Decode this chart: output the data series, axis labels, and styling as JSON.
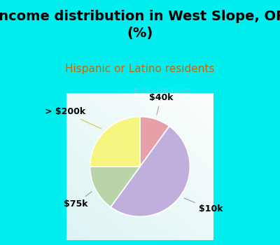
{
  "title": "Income distribution in West Slope, OR\n(%)",
  "subtitle": "Hispanic or Latino residents",
  "title_fontsize": 14,
  "subtitle_fontsize": 11,
  "title_color": "#000000",
  "subtitle_color": "#cc6600",
  "background_color": "#00eeee",
  "labels": [
    "$10k",
    "$40k",
    "> $200k",
    "$75k"
  ],
  "sizes": [
    50,
    10,
    25,
    15
  ],
  "colors": [
    "#c0aedd",
    "#e8a0a8",
    "#f5f580",
    "#b8d4a8"
  ],
  "label_fontsize": 9,
  "watermark": "City-Data.com",
  "watermark_color": "#aabbcc",
  "label_line_colors": [
    "#a090cc",
    "#cc8888",
    "#cccc44",
    "#88aa88"
  ]
}
